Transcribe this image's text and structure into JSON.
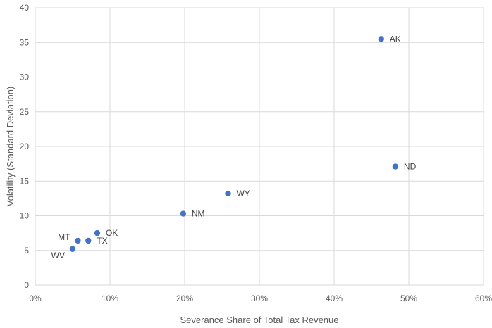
{
  "chart_data": {
    "type": "scatter",
    "title": "",
    "xlabel": "Severance Share of Total Tax Revenue",
    "ylabel": "Volatility (Standard Deviation)",
    "xlim": [
      0,
      0.6
    ],
    "ylim": [
      0,
      40
    ],
    "x_ticks": [
      0,
      0.1,
      0.2,
      0.3,
      0.4,
      0.5,
      0.6
    ],
    "x_tick_labels": [
      "0%",
      "10%",
      "20%",
      "30%",
      "40%",
      "50%",
      "60%"
    ],
    "y_ticks": [
      0,
      5,
      10,
      15,
      20,
      25,
      30,
      35,
      40
    ],
    "y_tick_labels": [
      "0",
      "5",
      "10",
      "15",
      "20",
      "25",
      "30",
      "35",
      "40"
    ],
    "grid": true,
    "legend": "none",
    "marker_color": "#4472C4",
    "points": [
      {
        "label": "AK",
        "x": 0.463,
        "y": 35.5,
        "label_side": "right"
      },
      {
        "label": "ND",
        "x": 0.482,
        "y": 17.1,
        "label_side": "right"
      },
      {
        "label": "WY",
        "x": 0.258,
        "y": 13.2,
        "label_side": "right"
      },
      {
        "label": "NM",
        "x": 0.198,
        "y": 10.3,
        "label_side": "right"
      },
      {
        "label": "OK",
        "x": 0.083,
        "y": 7.5,
        "label_side": "right"
      },
      {
        "label": "TX",
        "x": 0.071,
        "y": 6.4,
        "label_side": "right"
      },
      {
        "label": "MT",
        "x": 0.057,
        "y": 6.4,
        "label_side": "left"
      },
      {
        "label": "WV",
        "x": 0.05,
        "y": 5.2,
        "label_side": "left"
      }
    ]
  }
}
